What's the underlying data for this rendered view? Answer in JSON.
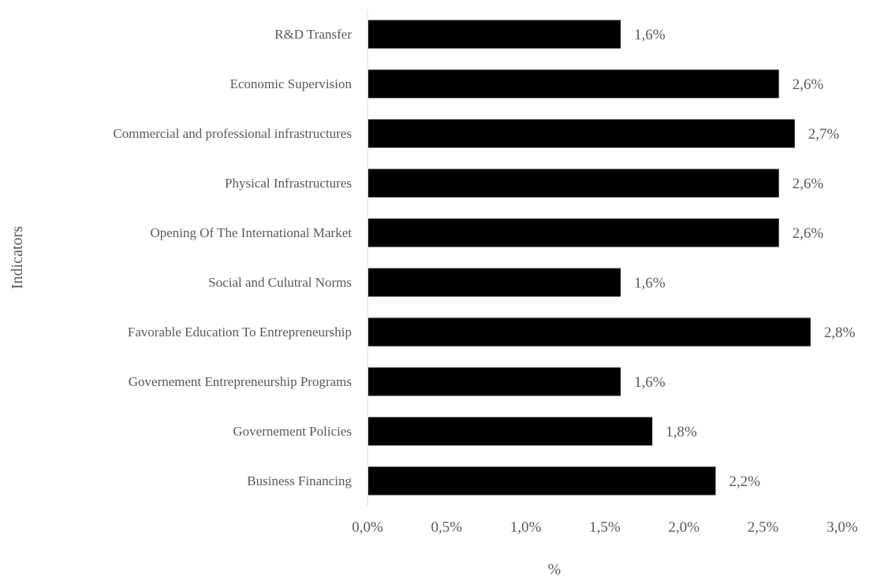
{
  "chart_data": {
    "type": "bar",
    "orientation": "horizontal",
    "categories": [
      "R&D Transfer",
      "Economic Supervision",
      "Commercial and professional infrastructures",
      "Physical Infrastructures",
      "Opening Of The International Market",
      "Social and Culutral Norms",
      "Favorable Education To Entrepreneurship",
      "Governement Entrepreneurship Programs",
      "Governement Policies",
      "Business Financing"
    ],
    "values": [
      1.6,
      2.6,
      2.7,
      2.6,
      2.6,
      1.6,
      2.8,
      1.6,
      1.8,
      2.2
    ],
    "value_labels": [
      "1,6%",
      "2,6%",
      "2,7%",
      "2,6%",
      "2,6%",
      "1,6%",
      "2,8%",
      "1,6%",
      "1,8%",
      "2,2%"
    ],
    "xlabel": "%",
    "ylabel": "Indicators",
    "xlim": [
      0,
      3.0
    ],
    "x_ticks": [
      0,
      0.5,
      1.0,
      1.5,
      2.0,
      2.5,
      3.0
    ],
    "x_tick_labels": [
      "0,0%",
      "0,5%",
      "1,0%",
      "1,5%",
      "2,0%",
      "2,5%",
      "3,0%"
    ],
    "bar_color": "#000000",
    "axis_color": "#d9d9d9",
    "text_color": "#595959",
    "grid": false,
    "legend": "none"
  }
}
